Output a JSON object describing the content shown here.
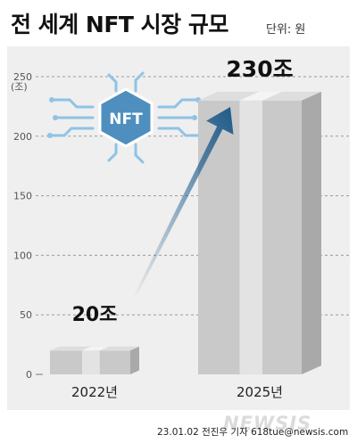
{
  "header": {
    "title": "전 세계 NFT 시장 규모",
    "unit": "단위: 원"
  },
  "chart_data": {
    "type": "bar",
    "categories": [
      "2022년",
      "2025년"
    ],
    "values": [
      20,
      230
    ],
    "value_labels": [
      "20조",
      "230조"
    ],
    "ylabel": "(조)",
    "yticks": [
      0,
      50,
      100,
      150,
      200,
      250
    ],
    "ylim": [
      0,
      250
    ],
    "grid": true,
    "annotation": "arrow from 2022 bar to 2025 bar",
    "bar_color": "#c9c9c9",
    "arrow_color": "#1f5b8a"
  },
  "logo": {
    "text": "NFT",
    "icon": "nft-circuit-icon",
    "color": "#4f8fbf"
  },
  "footer": {
    "credit": "23.01.02  전진우 기자  618tue@newsis.com",
    "watermark": "NEWSIS"
  }
}
